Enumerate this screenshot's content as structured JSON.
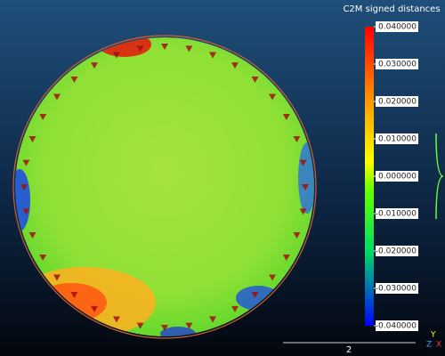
{
  "color_scale": {
    "title": "C2M signed distances",
    "ticks": [
      {
        "value": 0.04,
        "label": "0.040000"
      },
      {
        "value": 0.03,
        "label": "0.030000"
      },
      {
        "value": 0.02,
        "label": "0.020000"
      },
      {
        "value": 0.01,
        "label": "0.010000"
      },
      {
        "value": 0,
        "label": "0.000000"
      },
      {
        "value": -0.01,
        "label": "-0.010000"
      },
      {
        "value": -0.02,
        "label": "-0.020000"
      },
      {
        "value": -0.03,
        "label": "-0.030000"
      },
      {
        "value": -0.04,
        "label": "-0.040000"
      }
    ]
  },
  "scale_bar": {
    "label": "2"
  },
  "axes": {
    "y": "Y",
    "z": "Z",
    "x": "X"
  }
}
